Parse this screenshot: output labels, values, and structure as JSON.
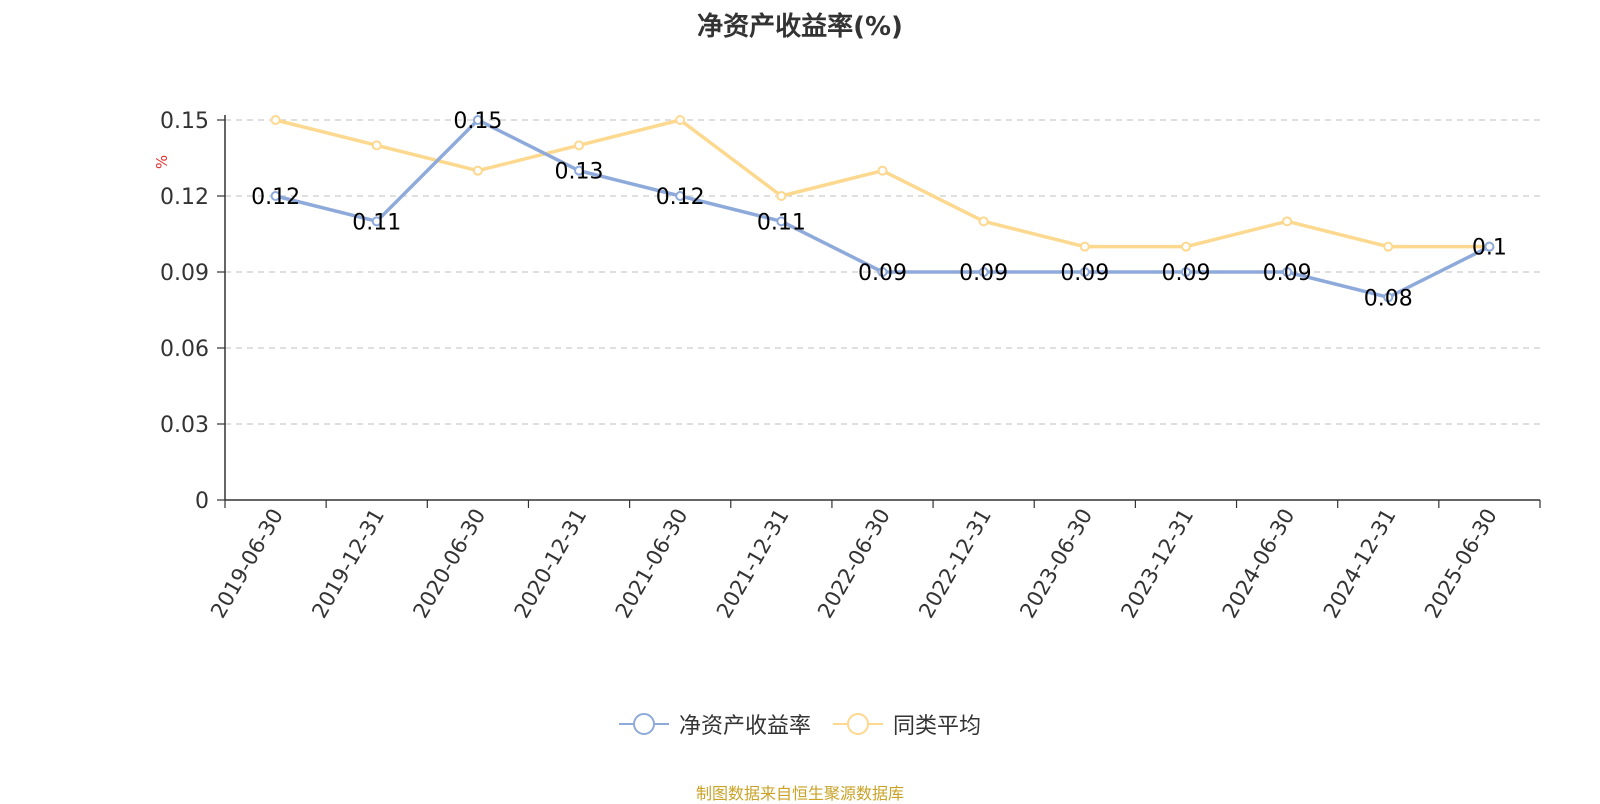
{
  "chart_data": {
    "type": "line",
    "title": "净资产收益率(%)",
    "ylabel": "%",
    "categories": [
      "2019-06-30",
      "2019-12-31",
      "2020-06-30",
      "2020-12-31",
      "2021-06-30",
      "2021-12-31",
      "2022-06-30",
      "2022-12-31",
      "2023-06-30",
      "2023-12-31",
      "2024-06-30",
      "2024-12-31",
      "2025-06-30"
    ],
    "series": [
      {
        "name": "净资产收益率",
        "color": "#8eaadb",
        "values": [
          0.12,
          0.11,
          0.15,
          0.13,
          0.12,
          0.11,
          0.09,
          0.09,
          0.09,
          0.09,
          0.09,
          0.08,
          0.1
        ]
      },
      {
        "name": "同类平均",
        "color": "#fdd88f",
        "values": [
          0.15,
          0.14,
          0.13,
          0.14,
          0.15,
          0.12,
          0.13,
          0.11,
          0.1,
          0.1,
          0.11,
          0.1,
          0.1
        ]
      }
    ],
    "y_ticks": [
      "0",
      "0.03",
      "0.06",
      "0.09",
      "0.12",
      "0.15"
    ],
    "ylim": [
      0,
      0.15
    ],
    "grid": true,
    "legend_position": "bottom"
  },
  "source": "制图数据来自恒生聚源数据库"
}
